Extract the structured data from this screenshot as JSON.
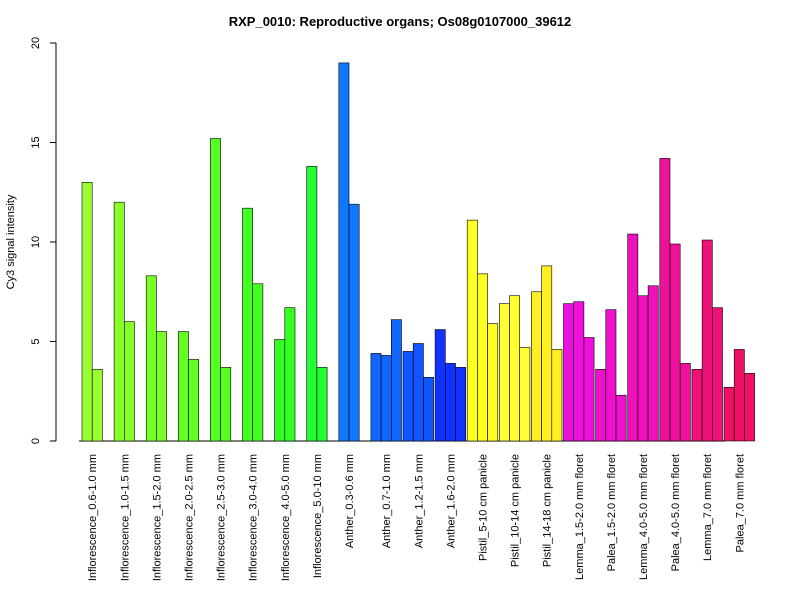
{
  "chart_data": {
    "type": "bar",
    "title": "RXP_0010: Reproductive organs; Os08g0107000_39612",
    "xlabel": "",
    "ylabel": "Cy3 signal intensity",
    "ylim": [
      0,
      20
    ],
    "yticks": [
      0,
      5,
      10,
      15,
      20
    ],
    "grid": false,
    "legend": "none",
    "groups": [
      {
        "label": "Inflorescence_0.6-1.0 mm",
        "color": "#99ff33",
        "values": [
          13.0,
          3.6
        ]
      },
      {
        "label": "Inflorescence_1.0-1.5 mm",
        "color": "#88ff2a",
        "values": [
          12.0,
          6.0
        ]
      },
      {
        "label": "Inflorescence_1.5-2.0 mm",
        "color": "#77ff26",
        "values": [
          8.3,
          5.5
        ]
      },
      {
        "label": "Inflorescence_2.0-2.5 mm",
        "color": "#66ff22",
        "values": [
          5.5,
          4.1
        ]
      },
      {
        "label": "Inflorescence_2.5-3.0 mm",
        "color": "#55ff22",
        "values": [
          15.2,
          3.7
        ]
      },
      {
        "label": "Inflorescence_3.0-4.0 mm",
        "color": "#44ff22",
        "values": [
          11.7,
          7.9
        ]
      },
      {
        "label": "Inflorescence_4.0-5.0 mm",
        "color": "#33ff22",
        "values": [
          5.1,
          6.7
        ]
      },
      {
        "label": "Inflorescence_5.0-10 mm",
        "color": "#22ff33",
        "values": [
          13.8,
          3.7
        ]
      },
      {
        "label": "Anther_0.3-0.6 mm",
        "color": "#1177ff",
        "values": [
          19.0,
          11.9
        ]
      },
      {
        "label": "Anther_0.7-1.0 mm",
        "color": "#1166ff",
        "values": [
          4.4,
          4.3,
          6.1
        ]
      },
      {
        "label": "Anther_1.2-1.5 mm",
        "color": "#1155ff",
        "values": [
          4.5,
          4.9,
          3.2
        ]
      },
      {
        "label": "Anther_1.6-2.0 mm",
        "color": "#1133ff",
        "values": [
          5.6,
          3.9,
          3.7
        ]
      },
      {
        "label": "Pistil_5-10 cm panicle",
        "color": "#ffff22",
        "values": [
          11.1,
          8.4,
          5.9
        ]
      },
      {
        "label": "Pistil_10-14 cm panicle",
        "color": "#ffff33",
        "values": [
          6.9,
          7.3,
          4.7
        ]
      },
      {
        "label": "Pistil_14-18 cm panicle",
        "color": "#ffee22",
        "values": [
          7.5,
          8.8,
          4.6
        ]
      },
      {
        "label": "Lemma_1.5-2.0 mm floret",
        "color": "#ee11dd",
        "values": [
          6.9,
          7.0,
          5.2
        ]
      },
      {
        "label": "Palea_1.5-2.0 mm floret",
        "color": "#ee11cc",
        "values": [
          3.6,
          6.6,
          2.3
        ]
      },
      {
        "label": "Lemma_4.0-5.0 mm floret",
        "color": "#ee11bb",
        "values": [
          10.4,
          7.3,
          7.8
        ]
      },
      {
        "label": "Palea_4.0-5.0 mm floret",
        "color": "#ee1199",
        "values": [
          14.2,
          9.9,
          3.9
        ]
      },
      {
        "label": "Lemma_7.0 mm floret",
        "color": "#ee1177",
        "values": [
          3.6,
          10.1,
          6.7
        ]
      },
      {
        "label": "Palea_7.0 mm floret",
        "color": "#ee1166",
        "values": [
          2.7,
          4.6,
          3.4
        ]
      }
    ]
  }
}
